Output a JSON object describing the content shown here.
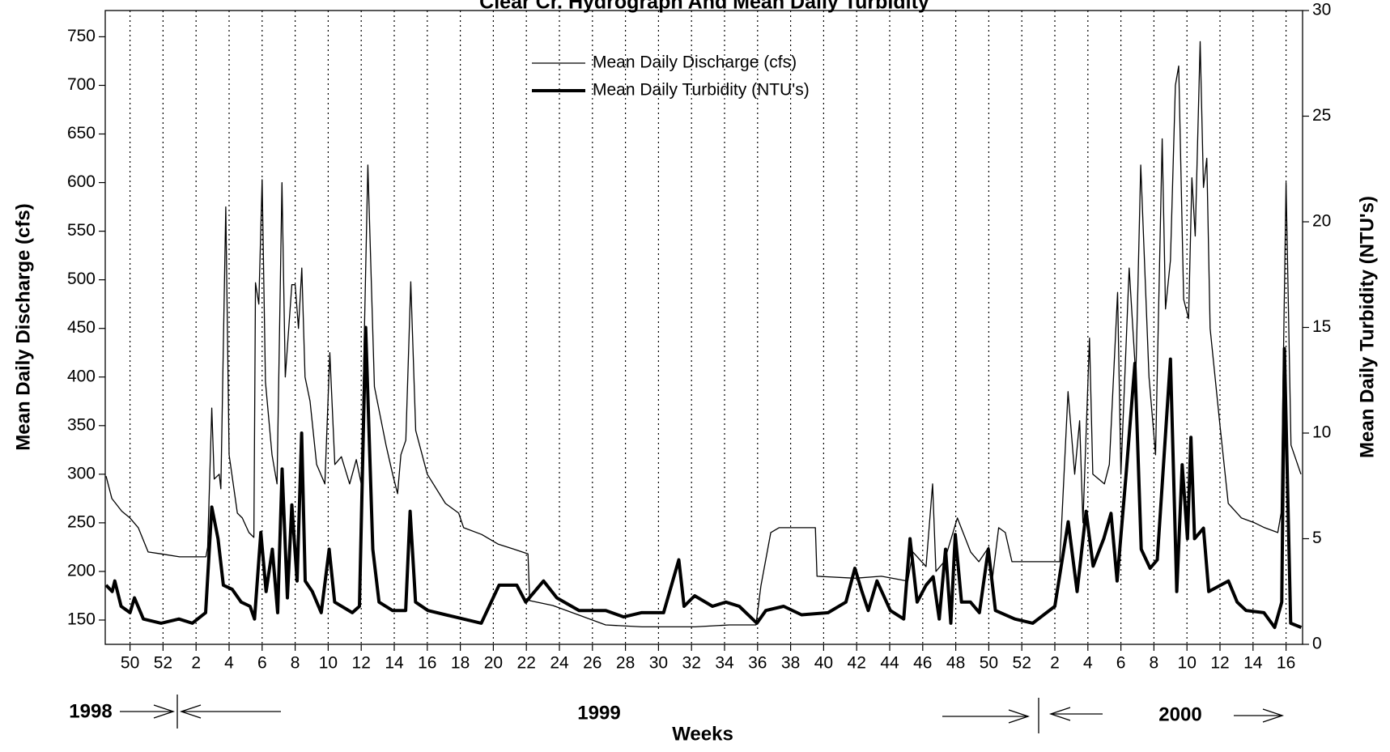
{
  "chart_data": {
    "type": "line",
    "title": "Clear Cr. Hydrograph And Mean Daily Turbidity",
    "xlabel": "Weeks",
    "ylabel": "Mean Daily Discharge (cfs)",
    "y2label": "Mean Daily Turbidity (NTU's)",
    "annotations": [
      "1998",
      "1999",
      "2000"
    ],
    "xlim": [
      -1.5,
      71
    ],
    "ylim": [
      125,
      777
    ],
    "y2lim": [
      0,
      30
    ],
    "grid": true,
    "legend": "top",
    "xticks": [
      {
        "value": 0,
        "label": "50"
      },
      {
        "value": 2,
        "label": "52"
      },
      {
        "value": 4,
        "label": "2"
      },
      {
        "value": 6,
        "label": "4"
      },
      {
        "value": 8,
        "label": "6"
      },
      {
        "value": 10,
        "label": "8"
      },
      {
        "value": 12,
        "label": "10"
      },
      {
        "value": 14,
        "label": "12"
      },
      {
        "value": 16,
        "label": "14"
      },
      {
        "value": 18,
        "label": "16"
      },
      {
        "value": 20,
        "label": "18"
      },
      {
        "value": 22,
        "label": "20"
      },
      {
        "value": 24,
        "label": "22"
      },
      {
        "value": 26,
        "label": "24"
      },
      {
        "value": 28,
        "label": "26"
      },
      {
        "value": 30,
        "label": "28"
      },
      {
        "value": 32,
        "label": "30"
      },
      {
        "value": 34,
        "label": "32"
      },
      {
        "value": 36,
        "label": "34"
      },
      {
        "value": 38,
        "label": "36"
      },
      {
        "value": 40,
        "label": "38"
      },
      {
        "value": 42,
        "label": "40"
      },
      {
        "value": 44,
        "label": "42"
      },
      {
        "value": 46,
        "label": "44"
      },
      {
        "value": 48,
        "label": "46"
      },
      {
        "value": 50,
        "label": "48"
      },
      {
        "value": 52,
        "label": "50"
      },
      {
        "value": 54,
        "label": "52"
      },
      {
        "value": 56,
        "label": "2"
      },
      {
        "value": 58,
        "label": "4"
      },
      {
        "value": 60,
        "label": "6"
      },
      {
        "value": 62,
        "label": "8"
      },
      {
        "value": 64,
        "label": "10"
      },
      {
        "value": 66,
        "label": "12"
      },
      {
        "value": 68,
        "label": "14"
      },
      {
        "value": 70,
        "label": "16"
      }
    ],
    "yticks": [
      150,
      200,
      250,
      300,
      350,
      400,
      450,
      500,
      550,
      600,
      650,
      700,
      750
    ],
    "y2ticks": [
      0,
      5,
      10,
      15,
      20,
      25,
      30
    ],
    "series": [
      {
        "name": "Mean Daily Discharge (cfs)",
        "color": "#000000",
        "axis": "y",
        "x": [
          -1.45,
          -1.1,
          -0.5,
          0,
          0.5,
          1.1,
          1.9,
          3.0,
          4.6,
          4.7,
          4.95,
          5.1,
          5.4,
          5.5,
          5.8,
          6.0,
          6.5,
          6.8,
          7.2,
          7.5,
          7.6,
          7.8,
          8.0,
          8.2,
          8.6,
          8.9,
          9.2,
          9.4,
          9.8,
          10.0,
          10.2,
          10.4,
          10.6,
          10.9,
          11.3,
          11.8,
          12.1,
          12.4,
          12.8,
          13.3,
          13.7,
          14.0,
          14.4,
          14.8,
          15.5,
          15.9,
          16.2,
          16.4,
          16.7,
          17.0,
          17.3,
          18.0,
          19.1,
          19.9,
          20.2,
          21.3,
          22.3,
          23.4,
          24.1,
          24.2,
          25.6,
          27.2,
          28.8,
          31.0,
          34.2,
          36.3,
          37.9,
          38.2,
          38.8,
          39.3,
          41.5,
          41.6,
          43.9,
          45.5,
          47.1,
          47.4,
          48.2,
          48.6,
          48.8,
          49.3,
          50.1,
          50.9,
          51.4,
          52.0,
          52.2,
          52.6,
          53.0,
          53.4,
          56.3,
          56.5,
          56.8,
          57.2,
          57.5,
          57.7,
          58.1,
          58.3,
          59.0,
          59.3,
          59.8,
          60.0,
          60.5,
          60.9,
          61.2,
          61.7,
          62.1,
          62.5,
          62.7,
          63.0,
          63.3,
          63.5,
          63.8,
          64.1,
          64.3,
          64.5,
          64.8,
          65.0,
          65.2,
          65.4,
          66.0,
          66.5,
          67.3,
          68.1,
          68.7,
          69.5,
          69.7,
          70.0,
          70.3,
          70.9
        ],
        "values": [
          298,
          275,
          262,
          255,
          245,
          220,
          218,
          215,
          215,
          225,
          368,
          295,
          300,
          285,
          575,
          320,
          260,
          255,
          240,
          235,
          497,
          475,
          603,
          395,
          320,
          290,
          600,
          400,
          495,
          495,
          450,
          512,
          400,
          375,
          310,
          290,
          425,
          310,
          318,
          290,
          315,
          290,
          618,
          390,
          330,
          300,
          280,
          320,
          335,
          498,
          345,
          300,
          270,
          260,
          245,
          238,
          228,
          222,
          218,
          170,
          165,
          155,
          145,
          143,
          143,
          145,
          145,
          185,
          240,
          245,
          245,
          195,
          193,
          195,
          190,
          220,
          205,
          290,
          200,
          210,
          255,
          220,
          210,
          225,
          190,
          245,
          240,
          210,
          210,
          280,
          385,
          300,
          355,
          250,
          440,
          300,
          290,
          310,
          487,
          300,
          512,
          400,
          618,
          400,
          320,
          645,
          470,
          520,
          700,
          720,
          480,
          460,
          605,
          545,
          745,
          595,
          625,
          450,
          350,
          270,
          255,
          250,
          245,
          240,
          260,
          600,
          330,
          300
        ]
      },
      {
        "name": "Mean Daily Turbidity (NTU's)",
        "color": "#000000",
        "axis": "y2",
        "x": [
          -1.45,
          -1.08,
          -0.92,
          -0.54,
          0,
          0.27,
          0.81,
          1.88,
          2.96,
          3.77,
          4.58,
          4.95,
          5.33,
          5.65,
          6.19,
          6.73,
          7.27,
          7.54,
          7.92,
          8.24,
          8.62,
          8.94,
          9.21,
          9.53,
          9.8,
          10.12,
          10.39,
          10.61,
          11.04,
          11.58,
          12.06,
          12.39,
          13.46,
          13.89,
          14.27,
          14.7,
          15.08,
          15.89,
          16.69,
          16.96,
          17.29,
          18.04,
          19.12,
          20.19,
          21.27,
          22.35,
          23.42,
          23.96,
          25.04,
          25.85,
          27.19,
          28.81,
          29.89,
          30.96,
          32.31,
          33.23,
          33.55,
          34.19,
          35.27,
          36.08,
          36.89,
          37.96,
          38.5,
          39.58,
          40.66,
          42.27,
          43.35,
          43.89,
          44.32,
          44.7,
          45.23,
          46.04,
          46.85,
          47.23,
          47.66,
          48.2,
          48.63,
          49,
          49.38,
          49.7,
          49.97,
          50.35,
          50.89,
          51.43,
          51.97,
          52.4,
          53.58,
          54.66,
          56.0,
          56.81,
          57.35,
          57.89,
          58.32,
          58.96,
          59.4,
          59.77,
          60.31,
          60.85,
          61.23,
          61.77,
          62.2,
          63.0,
          63.38,
          63.71,
          64.03,
          64.24,
          64.46,
          65,
          65.32,
          66.51,
          67.04,
          67.58,
          68.66,
          69.31,
          69.74,
          69.9,
          70.28,
          70.92
        ],
        "values": [
          2.8,
          2.5,
          3.0,
          1.8,
          1.5,
          2.2,
          1.2,
          1.0,
          1.2,
          1.0,
          1.5,
          6.5,
          5.0,
          2.8,
          2.6,
          2.0,
          1.8,
          1.2,
          5.3,
          2.5,
          4.5,
          1.5,
          8.3,
          2.2,
          6.6,
          3.0,
          10.0,
          3.0,
          2.5,
          1.5,
          4.5,
          2.0,
          1.5,
          1.8,
          15.0,
          4.5,
          2.0,
          1.6,
          1.6,
          6.3,
          2.0,
          1.6,
          1.4,
          1.2,
          1.0,
          2.8,
          2.8,
          2.0,
          3.0,
          2.2,
          1.6,
          1.6,
          1.3,
          1.5,
          1.5,
          4.0,
          1.8,
          2.3,
          1.8,
          2.0,
          1.8,
          1.0,
          1.6,
          1.8,
          1.4,
          1.5,
          2.0,
          3.6,
          2.5,
          1.6,
          3.0,
          1.6,
          1.2,
          5.0,
          2.0,
          2.8,
          3.2,
          1.2,
          4.5,
          1.0,
          5.2,
          2.0,
          2.0,
          1.5,
          4.5,
          1.6,
          1.2,
          1.0,
          1.8,
          5.8,
          2.5,
          6.3,
          3.7,
          5.0,
          6.2,
          3.0,
          8.0,
          13.3,
          4.5,
          3.6,
          4.0,
          13.5,
          2.5,
          8.5,
          5.0,
          9.8,
          5.0,
          5.5,
          2.5,
          3.0,
          2.0,
          1.6,
          1.5,
          0.8,
          2.0,
          14.0,
          1.0,
          0.8
        ]
      }
    ]
  }
}
